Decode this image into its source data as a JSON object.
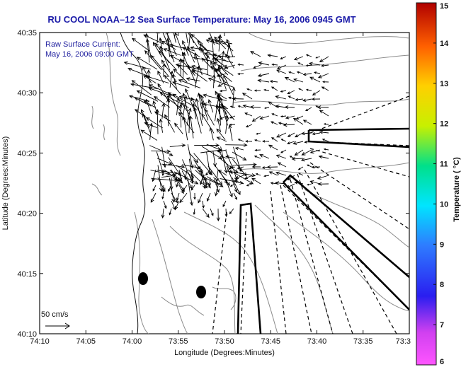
{
  "title": "RU COOL  NOAA–12  Sea Surface Temperature:  May 16, 2006 0945 GMT",
  "annotation": {
    "line1": "Raw Surface Current:",
    "line2": "May 16, 2006 09:00 GMT"
  },
  "scale": {
    "label": "50 cm/s"
  },
  "axes": {
    "xlabel": "Longitude (Degrees:Minutes)",
    "ylabel": "Latitude (Degrees:Minutes)",
    "xticks": [
      "74:10",
      "74:05",
      "74:00",
      "73:55",
      "73:50",
      "73:45",
      "73:40",
      "73:35",
      "73:3"
    ],
    "yticks": [
      "40:35",
      "40:30",
      "40:25",
      "40:20",
      "40:15",
      "40:10"
    ]
  },
  "colorbar": {
    "label": "Temperature ( °C)",
    "ticks": [
      "15",
      "14",
      "13",
      "12",
      "11",
      "10",
      "9",
      "8",
      "7",
      "6"
    ],
    "min": 6,
    "max": 15
  },
  "colors": {
    "title": "#1a1aa8",
    "annotation": "#2323a0",
    "coast": "#111111",
    "contour": "#8a8a8a"
  }
}
